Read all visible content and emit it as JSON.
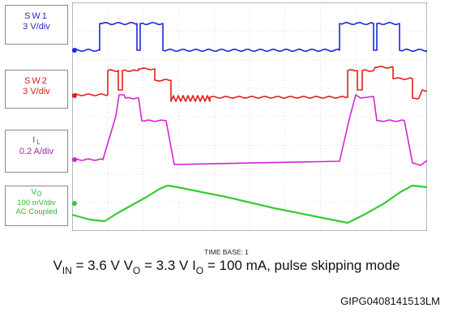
{
  "chart_data": {
    "type": "line",
    "title": "",
    "xlabel": "",
    "ylabel": "",
    "grid": true,
    "x_divisions": 10,
    "y_divisions": 8,
    "series": [
      {
        "name": "SW1",
        "scale": "3 V/div",
        "color": "#1d27d6"
      },
      {
        "name": "SW2",
        "scale": "3 V/div",
        "color": "#e0201c"
      },
      {
        "name": "IL",
        "scale": "0.2 A/div",
        "color": "#d323d3"
      },
      {
        "name": "VO",
        "scale": "100 mV/div",
        "coupling": "AC Coupled",
        "color": "#33cc33"
      }
    ]
  },
  "labels": {
    "sw1_name": "SW1",
    "sw1_scale": "3 V/div",
    "sw2_name": "SW2",
    "sw2_scale": "3 V/div",
    "il_main": "I",
    "il_sub": "L",
    "il_scale": "0.2 A/div",
    "vo_main": "V",
    "vo_sub": "O",
    "vo_scale": "100 mV/div",
    "vo_coupling": "AC Coupled"
  },
  "timebase": "TIME BASE: 1",
  "caption": {
    "vin_main": "V",
    "vin_sub": "IN",
    "vin_value": " = 3.6 V ",
    "vo_main": "V",
    "vo_sub": "O",
    "vo_value": " = 3.3 V ",
    "io_main": "I",
    "io_sub": "O",
    "io_value": " = 100 mA, pulse skipping mode"
  },
  "figure_id": "GIPG0408141513LM"
}
